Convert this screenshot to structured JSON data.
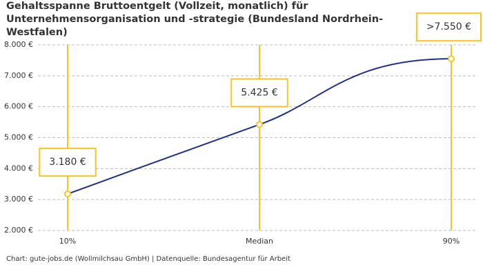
{
  "chart_data": {
    "type": "line",
    "title": "Gehaltsspanne Bruttoentgelt (Vollzeit, monatlich) für Unternehmensorganisation und -strategie (Bundesland Nordrhein-Westfalen)",
    "categories": [
      "10%",
      "Median",
      "90%"
    ],
    "values": [
      3180,
      5425,
      7550
    ],
    "value_labels": [
      "3.180 €",
      "5.425 €",
      ">7.550 €"
    ],
    "color": "#1f2e86",
    "marker_color": "#f5c623",
    "ylim": [
      2000,
      8000
    ],
    "yticks": [
      {
        "value": 2000,
        "label": "2.000 €"
      },
      {
        "value": 3000,
        "label": "3.000 €"
      },
      {
        "value": 4000,
        "label": "4.000 €"
      },
      {
        "value": 5000,
        "label": "5.000 €"
      },
      {
        "value": 6000,
        "label": "6.000 €"
      },
      {
        "value": 7000,
        "label": "7.000 €"
      },
      {
        "value": 8000,
        "label": "8.000 €"
      }
    ],
    "grid": true,
    "note": "Chart: gute-jobs.de (Wollmilchsau GmbH) | Datenquelle: Bundesagentur für Arbeit"
  }
}
